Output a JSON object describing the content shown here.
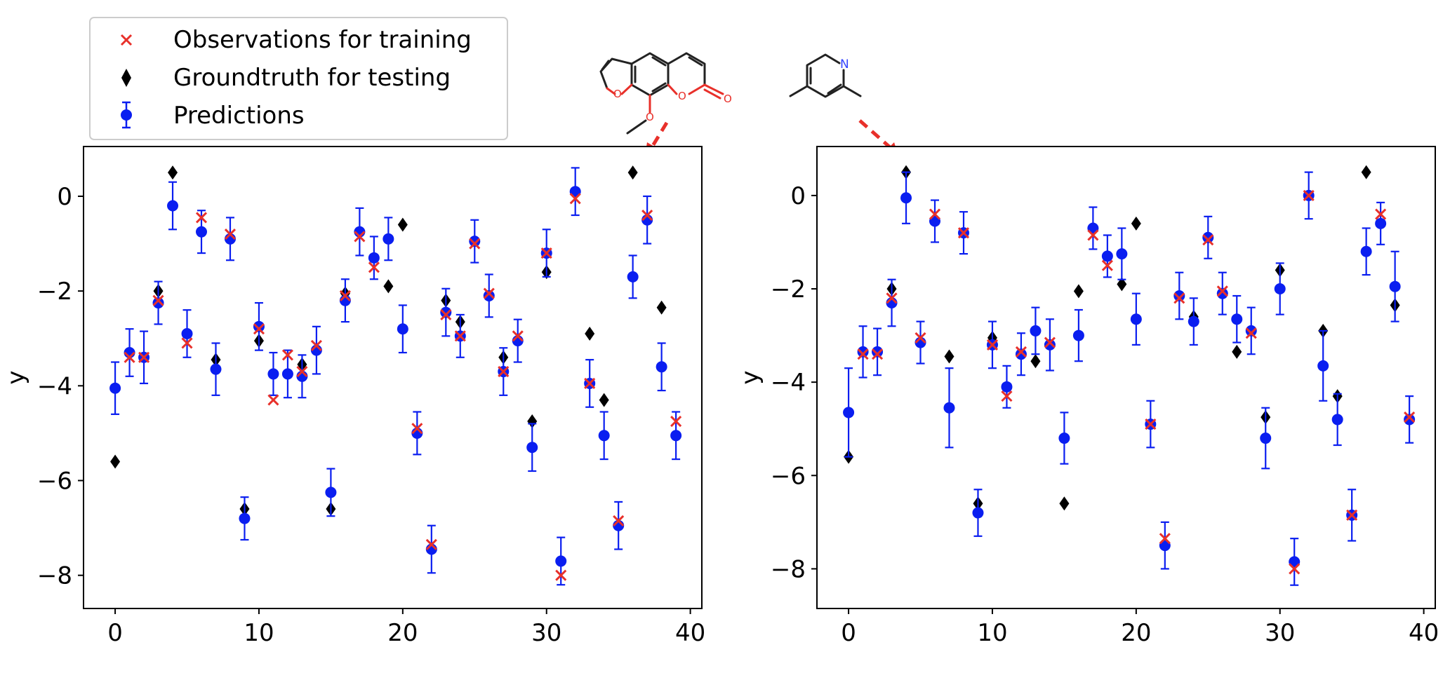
{
  "legend": {
    "items": [
      {
        "label": "Observations for training",
        "marker": "x",
        "color": "#e8302a"
      },
      {
        "label": "Groundtruth for testing",
        "marker": "diamond",
        "color": "#000000"
      },
      {
        "label": "Predictions",
        "marker": "dot-errorbar",
        "color": "#0a1ef0"
      }
    ]
  },
  "molecules": [
    {
      "name": "methoxy-furocoumarin-structure",
      "atom_labels": [
        "O",
        "O",
        "O",
        "O"
      ]
    },
    {
      "name": "dimethylpyridine-structure",
      "atom_labels": [
        "N"
      ]
    }
  ],
  "colors": {
    "observation": "#e8302a",
    "groundtruth": "#000000",
    "prediction": "#0a1ef0",
    "arrow": "#e8302a"
  },
  "chart_data": [
    {
      "type": "scatter",
      "title": "",
      "xlabel": "",
      "ylabel": "y",
      "xlim": [
        -2.2,
        40.8
      ],
      "ylim": [
        -8.7,
        1.05
      ],
      "xticks": [
        0,
        10,
        20,
        30,
        40
      ],
      "yticks": [
        0,
        -2,
        -4,
        -6,
        -8
      ],
      "xtick_labels": [
        "0",
        "10",
        "20",
        "30",
        "40"
      ],
      "ytick_labels": [
        "0",
        "−2",
        "−4",
        "−6",
        "−8"
      ],
      "series": [
        {
          "name": "Observations for training",
          "marker": "x",
          "points": [
            [
              1,
              -3.4
            ],
            [
              2,
              -3.4
            ],
            [
              3,
              -2.2
            ],
            [
              5,
              -3.1
            ],
            [
              6,
              -0.45
            ],
            [
              8,
              -0.8
            ],
            [
              10,
              -2.8
            ],
            [
              11,
              -4.3
            ],
            [
              12,
              -3.35
            ],
            [
              13,
              -3.7
            ],
            [
              14,
              -3.15
            ],
            [
              16,
              -2.1
            ],
            [
              17,
              -0.85
            ],
            [
              18,
              -1.5
            ],
            [
              21,
              -4.9
            ],
            [
              22,
              -7.35
            ],
            [
              23,
              -2.5
            ],
            [
              24,
              -2.95
            ],
            [
              25,
              -1.0
            ],
            [
              26,
              -2.05
            ],
            [
              27,
              -3.7
            ],
            [
              28,
              -2.95
            ],
            [
              30,
              -1.2
            ],
            [
              31,
              -8.0
            ],
            [
              32,
              -0.05
            ],
            [
              33,
              -3.95
            ],
            [
              35,
              -6.85
            ],
            [
              37,
              -0.4
            ],
            [
              39,
              -4.75
            ]
          ]
        },
        {
          "name": "Groundtruth for testing",
          "marker": "diamond",
          "points": [
            [
              0,
              -5.6
            ],
            [
              3,
              -2.0
            ],
            [
              4,
              0.5
            ],
            [
              7,
              -3.45
            ],
            [
              9,
              -6.6
            ],
            [
              10,
              -3.05
            ],
            [
              13,
              -3.55
            ],
            [
              15,
              -6.6
            ],
            [
              16,
              -2.05
            ],
            [
              19,
              -1.9
            ],
            [
              20,
              -0.6
            ],
            [
              23,
              -2.2
            ],
            [
              24,
              -2.65
            ],
            [
              27,
              -3.4
            ],
            [
              29,
              -4.75
            ],
            [
              30,
              -1.6
            ],
            [
              33,
              -2.9
            ],
            [
              34,
              -4.3
            ],
            [
              36,
              0.5
            ],
            [
              38,
              -2.35
            ]
          ]
        },
        {
          "name": "Predictions",
          "marker": "dot-errorbar",
          "points": [
            [
              0,
              -4.05,
              0.55
            ],
            [
              1,
              -3.3,
              0.5
            ],
            [
              2,
              -3.4,
              0.55
            ],
            [
              3,
              -2.25,
              0.45
            ],
            [
              4,
              -0.2,
              0.5
            ],
            [
              5,
              -2.9,
              0.5
            ],
            [
              6,
              -0.75,
              0.45
            ],
            [
              7,
              -3.65,
              0.55
            ],
            [
              8,
              -0.9,
              0.45
            ],
            [
              9,
              -6.8,
              0.45
            ],
            [
              10,
              -2.75,
              0.5
            ],
            [
              11,
              -3.75,
              0.45
            ],
            [
              12,
              -3.75,
              0.5
            ],
            [
              13,
              -3.8,
              0.45
            ],
            [
              14,
              -3.25,
              0.5
            ],
            [
              15,
              -6.25,
              0.5
            ],
            [
              16,
              -2.2,
              0.45
            ],
            [
              17,
              -0.75,
              0.5
            ],
            [
              18,
              -1.3,
              0.45
            ],
            [
              19,
              -0.9,
              0.45
            ],
            [
              20,
              -2.8,
              0.5
            ],
            [
              21,
              -5.0,
              0.45
            ],
            [
              22,
              -7.45,
              0.5
            ],
            [
              23,
              -2.45,
              0.5
            ],
            [
              24,
              -2.95,
              0.45
            ],
            [
              25,
              -0.95,
              0.45
            ],
            [
              26,
              -2.1,
              0.45
            ],
            [
              27,
              -3.7,
              0.5
            ],
            [
              28,
              -3.05,
              0.45
            ],
            [
              29,
              -5.3,
              0.5
            ],
            [
              30,
              -1.2,
              0.5
            ],
            [
              31,
              -7.7,
              0.5
            ],
            [
              32,
              0.1,
              0.5
            ],
            [
              33,
              -3.95,
              0.5
            ],
            [
              34,
              -5.05,
              0.5
            ],
            [
              35,
              -6.95,
              0.5
            ],
            [
              36,
              -1.7,
              0.45
            ],
            [
              37,
              -0.5,
              0.5
            ],
            [
              38,
              -3.6,
              0.5
            ],
            [
              39,
              -5.05,
              0.5
            ]
          ]
        }
      ]
    },
    {
      "type": "scatter",
      "title": "",
      "xlabel": "",
      "ylabel": "y",
      "xlim": [
        -2.2,
        40.8
      ],
      "ylim": [
        -8.85,
        1.05
      ],
      "xticks": [
        0,
        10,
        20,
        30,
        40
      ],
      "yticks": [
        0,
        -2,
        -4,
        -6,
        -8
      ],
      "xtick_labels": [
        "0",
        "10",
        "20",
        "30",
        "40"
      ],
      "ytick_labels": [
        "0",
        "−2",
        "−4",
        "−6",
        "−8"
      ],
      "series": [
        {
          "name": "Observations for training",
          "marker": "x",
          "points": [
            [
              1,
              -3.4
            ],
            [
              2,
              -3.4
            ],
            [
              3,
              -2.2
            ],
            [
              5,
              -3.05
            ],
            [
              6,
              -0.4
            ],
            [
              8,
              -0.8
            ],
            [
              10,
              -3.2
            ],
            [
              11,
              -4.3
            ],
            [
              12,
              -3.35
            ],
            [
              14,
              -3.15
            ],
            [
              17,
              -0.85
            ],
            [
              18,
              -1.5
            ],
            [
              21,
              -4.9
            ],
            [
              22,
              -7.35
            ],
            [
              23,
              -2.2
            ],
            [
              25,
              -0.95
            ],
            [
              26,
              -2.05
            ],
            [
              28,
              -2.95
            ],
            [
              31,
              -8.0
            ],
            [
              32,
              0.0
            ],
            [
              35,
              -6.85
            ],
            [
              37,
              -0.4
            ],
            [
              39,
              -4.75
            ]
          ]
        },
        {
          "name": "Groundtruth for testing",
          "marker": "diamond",
          "points": [
            [
              0,
              -5.6
            ],
            [
              3,
              -2.0
            ],
            [
              4,
              0.5
            ],
            [
              7,
              -3.45
            ],
            [
              9,
              -6.6
            ],
            [
              10,
              -3.05
            ],
            [
              13,
              -3.55
            ],
            [
              15,
              -6.6
            ],
            [
              16,
              -2.05
            ],
            [
              19,
              -1.9
            ],
            [
              20,
              -0.6
            ],
            [
              24,
              -2.6
            ],
            [
              27,
              -3.35
            ],
            [
              29,
              -4.75
            ],
            [
              30,
              -1.6
            ],
            [
              33,
              -2.9
            ],
            [
              34,
              -4.3
            ],
            [
              36,
              0.5
            ],
            [
              38,
              -2.35
            ]
          ]
        },
        {
          "name": "Predictions",
          "marker": "dot-errorbar",
          "points": [
            [
              0,
              -4.65,
              0.95
            ],
            [
              1,
              -3.35,
              0.55
            ],
            [
              2,
              -3.35,
              0.5
            ],
            [
              3,
              -2.3,
              0.5
            ],
            [
              4,
              -0.05,
              0.55
            ],
            [
              5,
              -3.15,
              0.45
            ],
            [
              6,
              -0.55,
              0.45
            ],
            [
              7,
              -4.55,
              0.85
            ],
            [
              8,
              -0.8,
              0.45
            ],
            [
              9,
              -6.8,
              0.5
            ],
            [
              10,
              -3.2,
              0.5
            ],
            [
              11,
              -4.1,
              0.45
            ],
            [
              12,
              -3.4,
              0.45
            ],
            [
              13,
              -2.9,
              0.5
            ],
            [
              14,
              -3.2,
              0.55
            ],
            [
              15,
              -5.2,
              0.55
            ],
            [
              16,
              -3.0,
              0.55
            ],
            [
              17,
              -0.7,
              0.45
            ],
            [
              18,
              -1.3,
              0.45
            ],
            [
              19,
              -1.25,
              0.55
            ],
            [
              20,
              -2.65,
              0.55
            ],
            [
              21,
              -4.9,
              0.5
            ],
            [
              22,
              -7.5,
              0.5
            ],
            [
              23,
              -2.15,
              0.5
            ],
            [
              24,
              -2.7,
              0.5
            ],
            [
              25,
              -0.9,
              0.45
            ],
            [
              26,
              -2.1,
              0.45
            ],
            [
              27,
              -2.65,
              0.5
            ],
            [
              28,
              -2.9,
              0.5
            ],
            [
              29,
              -5.2,
              0.65
            ],
            [
              30,
              -2.0,
              0.55
            ],
            [
              31,
              -7.85,
              0.5
            ],
            [
              32,
              0.0,
              0.5
            ],
            [
              33,
              -3.65,
              0.75
            ],
            [
              34,
              -4.8,
              0.55
            ],
            [
              35,
              -6.85,
              0.55
            ],
            [
              36,
              -1.2,
              0.5
            ],
            [
              37,
              -0.6,
              0.45
            ],
            [
              38,
              -1.95,
              0.75
            ],
            [
              39,
              -4.8,
              0.5
            ]
          ]
        }
      ]
    }
  ]
}
